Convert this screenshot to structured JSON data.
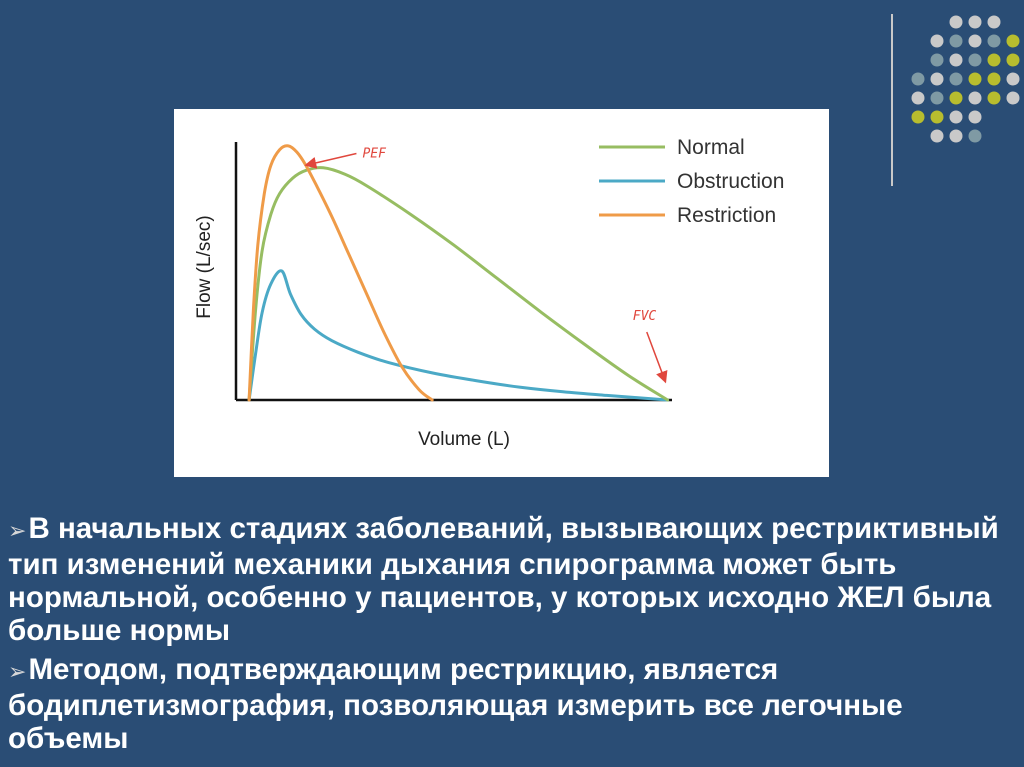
{
  "slide": {
    "background": "#2a4d75",
    "bullets": [
      "В начальных стадиях заболеваний, вызывающих рестриктивный тип изменений механики дыхания спирограмма может быть нормальной, особенно у пациентов, у которых исходно ЖЕЛ была больше нормы",
      "Методом, подтверждающим рестрикцию, является бодиплетизмография, позволяющая измерить все легочные объемы"
    ],
    "bullet_icon": "arrow-bullet-icon"
  },
  "decoration": {
    "icon": "dot-grid-icon",
    "colors": [
      "#c9c9c9",
      "#7f9aa4",
      "#b8bd2e"
    ]
  },
  "chart_data": {
    "type": "line",
    "xlabel": "Volume (L)",
    "ylabel": "Flow (L/sec)",
    "xlim": [
      0,
      10
    ],
    "ylim": [
      0,
      10
    ],
    "grid": false,
    "legend_position": "top-right",
    "series": [
      {
        "name": "Normal",
        "color": "#97bd62",
        "x": [
          0.3,
          0.45,
          0.6,
          0.8,
          1.0,
          1.3,
          1.6,
          2.0,
          2.5,
          3.0,
          4.0,
          5.0,
          6.0,
          7.0,
          8.0,
          9.0,
          9.9
        ],
        "y": [
          0,
          3.5,
          5.8,
          7.2,
          8.0,
          8.6,
          8.9,
          9.0,
          8.75,
          8.3,
          7.2,
          6.0,
          4.7,
          3.4,
          2.15,
          0.95,
          0
        ]
      },
      {
        "name": "Obstruction",
        "color": "#4ba9c6",
        "x": [
          0.3,
          0.45,
          0.6,
          0.8,
          1.05,
          1.25,
          1.5,
          1.8,
          2.2,
          2.8,
          3.5,
          4.5,
          5.5,
          6.5,
          7.5,
          8.5,
          9.9
        ],
        "y": [
          0,
          1.8,
          3.4,
          4.5,
          5.0,
          4.1,
          3.3,
          2.75,
          2.3,
          1.85,
          1.45,
          1.05,
          0.75,
          0.5,
          0.32,
          0.18,
          0
        ]
      },
      {
        "name": "Restriction",
        "color": "#ef9b48",
        "x": [
          0.3,
          0.4,
          0.5,
          0.65,
          0.8,
          1.0,
          1.2,
          1.4,
          1.6,
          1.85,
          2.2,
          2.6,
          3.0,
          3.4,
          3.8,
          4.2,
          4.5
        ],
        "y": [
          0,
          3.5,
          6.0,
          8.0,
          9.1,
          9.7,
          9.85,
          9.6,
          9.1,
          8.3,
          7.1,
          5.6,
          4.1,
          2.6,
          1.3,
          0.4,
          0
        ]
      }
    ],
    "annotations": [
      {
        "text": "PEF",
        "color": "#e0473d",
        "x": 2.9,
        "y": 9.4,
        "arrow_to": [
          1.6,
          9.1
        ]
      },
      {
        "text": "FVC",
        "color": "#e0473d",
        "x": 9.1,
        "y": 3.1,
        "arrow_to": [
          9.85,
          0.7
        ]
      }
    ]
  }
}
